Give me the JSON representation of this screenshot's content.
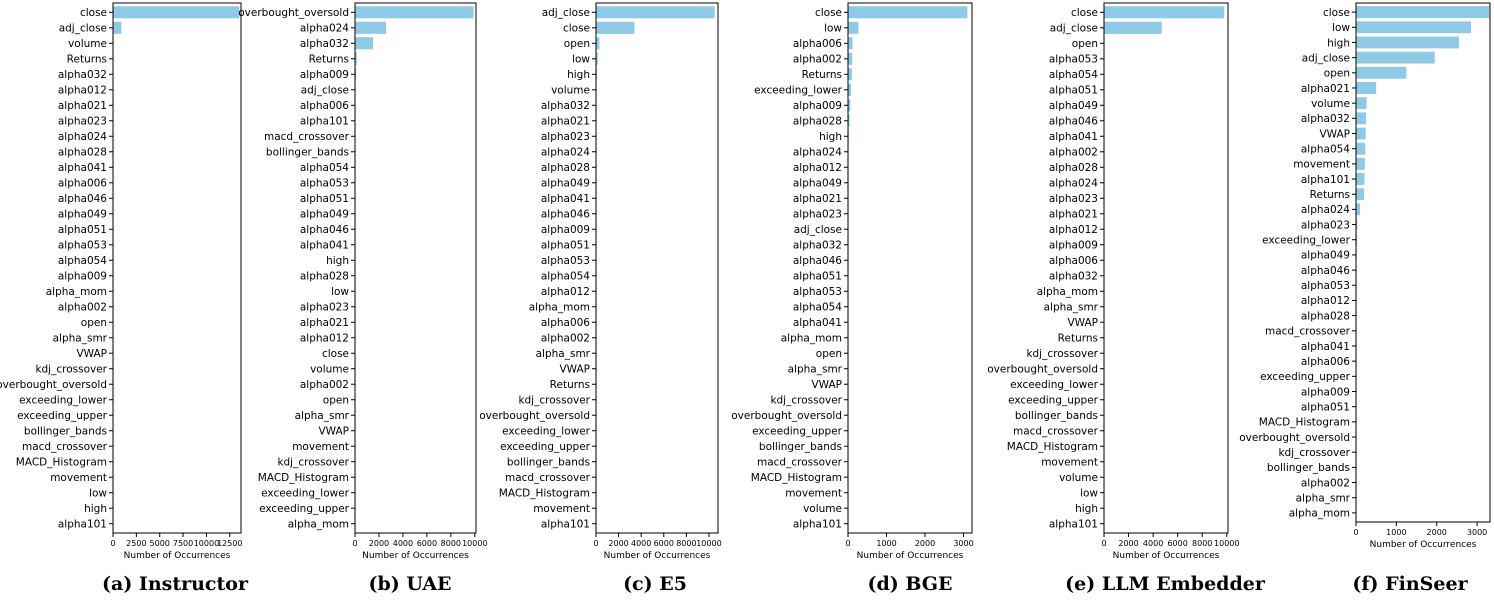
{
  "style": {
    "bar_color": "#8ecae6",
    "axis_color": "#000000",
    "text_color": "#000000"
  },
  "chart_data": [
    {
      "type": "bar",
      "orientation": "horizontal",
      "caption": "(a) Instructor",
      "xlabel": "Number of Occurrences",
      "xlim": [
        0,
        13700
      ],
      "xticks": [
        0,
        2500,
        5000,
        7500,
        10000,
        12500
      ],
      "xtick_labels": [
        "0",
        "2500",
        "5000",
        "7500",
        "10000",
        "12500"
      ],
      "categories": [
        "close",
        "adj_close",
        "volume",
        "Returns",
        "alpha032",
        "alpha012",
        "alpha021",
        "alpha023",
        "alpha024",
        "alpha028",
        "alpha041",
        "alpha006",
        "alpha046",
        "alpha049",
        "alpha051",
        "alpha053",
        "alpha054",
        "alpha009",
        "alpha_mom",
        "alpha002",
        "open",
        "alpha_smr",
        "VWAP",
        "kdj_crossover",
        "overbought_oversold",
        "exceeding_lower",
        "exceeding_upper",
        "bollinger_bands",
        "macd_crossover",
        "MACD_Histogram",
        "movement",
        "low",
        "high",
        "alpha101"
      ],
      "values": [
        13500,
        900,
        60,
        50,
        40,
        35,
        30,
        30,
        25,
        25,
        20,
        20,
        20,
        20,
        15,
        15,
        15,
        15,
        10,
        10,
        10,
        10,
        10,
        5,
        5,
        5,
        5,
        5,
        5,
        5,
        5,
        5,
        5,
        5
      ]
    },
    {
      "type": "bar",
      "orientation": "horizontal",
      "caption": "(b) UAE",
      "xlabel": "Number of Occurrences",
      "xlim": [
        0,
        10100
      ],
      "xticks": [
        0,
        2000,
        4000,
        6000,
        8000,
        10000
      ],
      "xtick_labels": [
        "0",
        "2000",
        "4000",
        "6000",
        "8000",
        "10000"
      ],
      "categories": [
        "overbought_oversold",
        "alpha024",
        "alpha032",
        "Returns",
        "alpha009",
        "adj_close",
        "alpha006",
        "alpha101",
        "macd_crossover",
        "bollinger_bands",
        "alpha054",
        "alpha053",
        "alpha051",
        "alpha049",
        "alpha046",
        "alpha041",
        "high",
        "alpha028",
        "low",
        "alpha023",
        "alpha021",
        "alpha012",
        "close",
        "volume",
        "alpha002",
        "open",
        "alpha_smr",
        "VWAP",
        "movement",
        "kdj_crossover",
        "MACD_Histogram",
        "exceeding_lower",
        "exceeding_upper",
        "alpha_mom"
      ],
      "values": [
        9900,
        2600,
        1500,
        150,
        100,
        40,
        30,
        30,
        25,
        25,
        20,
        20,
        20,
        20,
        15,
        15,
        15,
        15,
        10,
        10,
        10,
        10,
        10,
        10,
        5,
        5,
        5,
        5,
        5,
        5,
        5,
        5,
        5,
        5
      ]
    },
    {
      "type": "bar",
      "orientation": "horizontal",
      "caption": "(c) E5",
      "xlabel": "Number of Occurrences",
      "xlim": [
        0,
        10800
      ],
      "xticks": [
        0,
        2000,
        4000,
        6000,
        8000,
        10000
      ],
      "xtick_labels": [
        "0",
        "2000",
        "4000",
        "6000",
        "8000",
        "10000"
      ],
      "categories": [
        "adj_close",
        "close",
        "open",
        "low",
        "high",
        "volume",
        "alpha032",
        "alpha021",
        "alpha023",
        "alpha024",
        "alpha028",
        "alpha049",
        "alpha041",
        "alpha046",
        "alpha009",
        "alpha051",
        "alpha053",
        "alpha054",
        "alpha012",
        "alpha_mom",
        "alpha006",
        "alpha002",
        "alpha_smr",
        "VWAP",
        "Returns",
        "kdj_crossover",
        "overbought_oversold",
        "exceeding_lower",
        "exceeding_upper",
        "bollinger_bands",
        "macd_crossover",
        "MACD_Histogram",
        "movement",
        "alpha101"
      ],
      "values": [
        10500,
        3400,
        300,
        150,
        80,
        50,
        40,
        35,
        30,
        30,
        25,
        25,
        20,
        20,
        20,
        15,
        15,
        15,
        15,
        10,
        10,
        10,
        10,
        10,
        5,
        5,
        5,
        5,
        5,
        5,
        5,
        5,
        5,
        5
      ]
    },
    {
      "type": "bar",
      "orientation": "horizontal",
      "caption": "(d) BGE",
      "xlabel": "Number of Occurrences",
      "xlim": [
        0,
        3220
      ],
      "xticks": [
        0,
        1000,
        2000,
        3000
      ],
      "xtick_labels": [
        "0",
        "1000",
        "2000",
        "3000"
      ],
      "categories": [
        "close",
        "low",
        "alpha006",
        "alpha002",
        "Returns",
        "exceeding_lower",
        "alpha009",
        "alpha028",
        "high",
        "alpha024",
        "alpha012",
        "alpha049",
        "alpha021",
        "alpha023",
        "adj_close",
        "alpha032",
        "alpha046",
        "alpha051",
        "alpha053",
        "alpha054",
        "alpha041",
        "alpha_mom",
        "open",
        "alpha_smr",
        "VWAP",
        "kdj_crossover",
        "overbought_oversold",
        "exceeding_upper",
        "bollinger_bands",
        "macd_crossover",
        "MACD_Histogram",
        "movement",
        "volume",
        "alpha101"
      ],
      "values": [
        3100,
        270,
        120,
        110,
        100,
        80,
        60,
        40,
        20,
        15,
        15,
        15,
        10,
        10,
        10,
        10,
        10,
        10,
        10,
        10,
        8,
        8,
        5,
        5,
        5,
        5,
        5,
        5,
        5,
        5,
        5,
        5,
        5,
        5
      ]
    },
    {
      "type": "bar",
      "orientation": "horizontal",
      "caption": "(e) LLM Embedder",
      "xlabel": "Number of Occurrences",
      "xlim": [
        0,
        10100
      ],
      "xticks": [
        0,
        2000,
        4000,
        6000,
        8000,
        10000
      ],
      "xtick_labels": [
        "0",
        "2000",
        "4000",
        "6000",
        "8000",
        "10000"
      ],
      "categories": [
        "close",
        "adj_close",
        "open",
        "alpha053",
        "alpha054",
        "alpha051",
        "alpha049",
        "alpha046",
        "alpha041",
        "alpha002",
        "alpha028",
        "alpha024",
        "alpha023",
        "alpha021",
        "alpha012",
        "alpha009",
        "alpha006",
        "alpha032",
        "alpha_mom",
        "alpha_smr",
        "VWAP",
        "Returns",
        "kdj_crossover",
        "overbought_oversold",
        "exceeding_lower",
        "exceeding_upper",
        "bollinger_bands",
        "macd_crossover",
        "MACD_Histogram",
        "movement",
        "volume",
        "low",
        "high",
        "alpha101"
      ],
      "values": [
        9800,
        4700,
        40,
        30,
        30,
        30,
        25,
        25,
        25,
        20,
        20,
        20,
        15,
        15,
        15,
        15,
        10,
        10,
        10,
        10,
        10,
        10,
        5,
        5,
        5,
        5,
        5,
        5,
        5,
        5,
        5,
        5,
        5,
        5
      ]
    },
    {
      "type": "bar",
      "orientation": "horizontal",
      "caption": "(f) FinSeer",
      "xlabel": "Number of Occurrences",
      "xlim": [
        0,
        3320
      ],
      "xticks": [
        0,
        1000,
        2000,
        3000
      ],
      "xtick_labels": [
        "0",
        "1000",
        "2000",
        "3000"
      ],
      "categories": [
        "close",
        "low",
        "high",
        "adj_close",
        "open",
        "alpha021",
        "volume",
        "alpha032",
        "VWAP",
        "alpha054",
        "movement",
        "alpha101",
        "Returns",
        "alpha024",
        "alpha023",
        "exceeding_lower",
        "alpha049",
        "alpha046",
        "alpha053",
        "alpha012",
        "alpha028",
        "macd_crossover",
        "alpha041",
        "alpha006",
        "exceeding_upper",
        "alpha009",
        "alpha051",
        "MACD_Histogram",
        "overbought_oversold",
        "kdj_crossover",
        "bollinger_bands",
        "alpha002",
        "alpha_smr",
        "alpha_mom"
      ],
      "values": [
        3300,
        2850,
        2550,
        1950,
        1250,
        500,
        260,
        250,
        240,
        230,
        220,
        210,
        200,
        100,
        30,
        25,
        20,
        15,
        15,
        10,
        10,
        10,
        5,
        5,
        5,
        5,
        5,
        5,
        5,
        5,
        5,
        5,
        5,
        5
      ]
    }
  ]
}
